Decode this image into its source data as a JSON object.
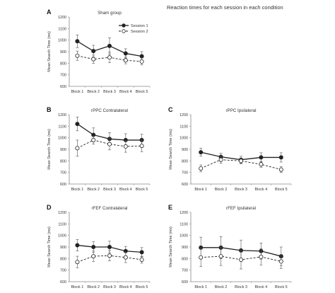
{
  "figure": {
    "title": "Reaction times for each session in each condition",
    "colors": {
      "session1": "#222222",
      "session2_marker_fill": "#ffffff",
      "axis": "#888888",
      "error_bar": "#555555"
    }
  },
  "chart_data": [
    {
      "panel": "A",
      "type": "line",
      "title": "Sham group",
      "ylabel": "Mean Search Time (ms)",
      "xlabel": "",
      "ylim": [
        600,
        1200
      ],
      "yticks": [
        600,
        700,
        800,
        900,
        1000,
        1100,
        1200
      ],
      "categories": [
        "Block 1",
        "Block 2",
        "Block 3",
        "Block 4",
        "Block 5"
      ],
      "legend": "top-right",
      "grid": false,
      "series": [
        {
          "name": "Session 1",
          "style": "solid-filled",
          "values": [
            990,
            905,
            950,
            885,
            860
          ],
          "errors": [
            55,
            50,
            70,
            40,
            40
          ]
        },
        {
          "name": "Session 2",
          "style": "dashed-open",
          "values": [
            865,
            835,
            850,
            825,
            815
          ],
          "errors": [
            40,
            35,
            45,
            30,
            30
          ]
        }
      ]
    },
    {
      "panel": "B",
      "type": "line",
      "title": "rPPC Contralateral",
      "ylabel": "Mean Search Time (ms)",
      "xlabel": "",
      "ylim": [
        600,
        1200
      ],
      "yticks": [
        600,
        700,
        800,
        900,
        1000,
        1100,
        1200
      ],
      "categories": [
        "Block 1",
        "Block 2",
        "Block 3",
        "Block 4",
        "Block 5"
      ],
      "grid": false,
      "series": [
        {
          "name": "Session 1",
          "style": "solid-filled",
          "values": [
            1120,
            1025,
            990,
            980,
            980
          ],
          "errors": [
            60,
            60,
            55,
            55,
            50
          ]
        },
        {
          "name": "Session 2",
          "style": "dashed-open",
          "values": [
            910,
            980,
            945,
            925,
            930
          ],
          "errors": [
            70,
            35,
            50,
            50,
            50
          ]
        }
      ]
    },
    {
      "panel": "C",
      "type": "line",
      "title": "rPPC Ipsilateral",
      "ylabel": "Mean Search Time (ms)",
      "xlabel": "",
      "ylim": [
        600,
        1200
      ],
      "yticks": [
        600,
        700,
        800,
        900,
        1000,
        1100,
        1200
      ],
      "categories": [
        "Block 1",
        "Block 2",
        "Block 3",
        "Block 4",
        "Block 5"
      ],
      "grid": false,
      "series": [
        {
          "name": "Session 1",
          "style": "solid-filled",
          "values": [
            875,
            835,
            810,
            830,
            830
          ],
          "errors": [
            35,
            30,
            30,
            40,
            40
          ]
        },
        {
          "name": "Session 2",
          "style": "dashed-open",
          "values": [
            735,
            810,
            800,
            770,
            725
          ],
          "errors": [
            30,
            30,
            25,
            25,
            25
          ]
        }
      ]
    },
    {
      "panel": "D",
      "type": "line",
      "title": "rFEF Contralateral",
      "ylabel": "Mean Search Time (ms)",
      "xlabel": "",
      "ylim": [
        600,
        1200
      ],
      "yticks": [
        600,
        700,
        800,
        900,
        1000,
        1100,
        1200
      ],
      "categories": [
        "Block 1",
        "Block 2",
        "Block 3",
        "Block 4",
        "Block 5"
      ],
      "grid": false,
      "series": [
        {
          "name": "Session 1",
          "style": "solid-filled",
          "values": [
            915,
            900,
            900,
            865,
            855
          ],
          "errors": [
            50,
            45,
            50,
            40,
            40
          ]
        },
        {
          "name": "Session 2",
          "style": "dashed-open",
          "values": [
            770,
            820,
            825,
            810,
            790
          ],
          "errors": [
            50,
            45,
            45,
            45,
            30
          ]
        }
      ]
    },
    {
      "panel": "E",
      "type": "line",
      "title": "rFEF Ipsilateral",
      "ylabel": "Mean Search Time (ms)",
      "xlabel": "",
      "ylim": [
        600,
        1200
      ],
      "yticks": [
        600,
        700,
        800,
        900,
        1000,
        1100,
        1200
      ],
      "categories": [
        "Block 1",
        "Block 2",
        "Block 3",
        "Block 4",
        "Block 5"
      ],
      "grid": false,
      "series": [
        {
          "name": "Session 1",
          "style": "solid-filled",
          "values": [
            895,
            895,
            870,
            865,
            820
          ],
          "errors": [
            90,
            95,
            90,
            70,
            80
          ]
        },
        {
          "name": "Session 2",
          "style": "dashed-open",
          "values": [
            810,
            820,
            790,
            815,
            775
          ],
          "errors": [
            80,
            80,
            80,
            70,
            60
          ]
        }
      ]
    }
  ]
}
